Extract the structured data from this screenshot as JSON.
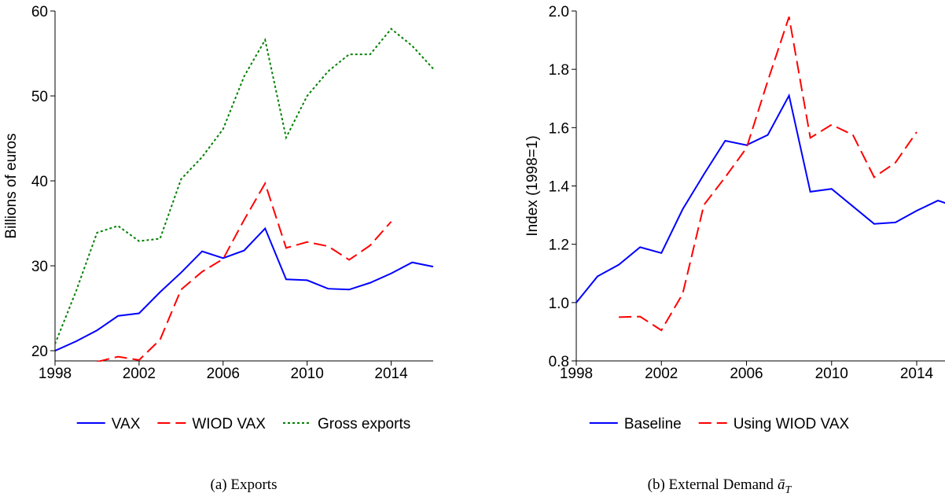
{
  "chart_data": [
    {
      "type": "line",
      "y_label": "Billions of euros",
      "caption": "(a) Exports",
      "x": [
        1998,
        1999,
        2000,
        2001,
        2002,
        2003,
        2004,
        2005,
        2006,
        2007,
        2008,
        2009,
        2010,
        2011,
        2012,
        2013,
        2014,
        2015,
        2016
      ],
      "xlim": [
        1998,
        2016
      ],
      "xticks": [
        1998,
        2002,
        2006,
        2010,
        2014
      ],
      "ylim": [
        18.8,
        60
      ],
      "yticks": [
        20,
        30,
        40,
        50,
        60
      ],
      "series": [
        {
          "name": "VAX",
          "color": "#0000ff",
          "dash": "solid",
          "values": [
            20,
            21.1,
            22.4,
            24.1,
            24.4,
            26.9,
            29.2,
            31.7,
            30.9,
            31.8,
            34.4,
            28.4,
            28.3,
            27.3,
            27.2,
            28.0,
            29.1,
            30.4,
            29.9
          ]
        },
        {
          "name": "WIOD VAX",
          "color": "#ff0000",
          "dash": "dashed",
          "values": [
            null,
            null,
            18.7,
            19.3,
            18.9,
            21.3,
            27.2,
            29.3,
            30.8,
            35.4,
            39.7,
            32.1,
            32.8,
            32.3,
            30.7,
            32.4,
            35.2,
            null,
            null
          ]
        },
        {
          "name": "Gross exports",
          "color": "#008000",
          "dash": "dotted",
          "values": [
            20.8,
            27,
            33.9,
            34.7,
            32.9,
            33.2,
            40.2,
            42.8,
            46.1,
            52.3,
            56.6,
            45.1,
            50.0,
            52.9,
            54.9,
            54.9,
            57.9,
            55.9,
            53.2
          ]
        }
      ]
    },
    {
      "type": "line",
      "y_label": "Index (1998=1)",
      "caption": "(b) External Demand",
      "caption_symbol": "ā",
      "caption_subscript": "T",
      "x": [
        1998,
        1999,
        2000,
        2001,
        2002,
        2003,
        2004,
        2005,
        2006,
        2007,
        2008,
        2009,
        2010,
        2011,
        2012,
        2013,
        2014,
        2015,
        2016
      ],
      "xlim": [
        1998,
        2015.33
      ],
      "xticks": [
        1998,
        2002,
        2006,
        2010,
        2014
      ],
      "ylim": [
        0.8,
        2.0
      ],
      "yticks": [
        0.8,
        {
          "value": 1,
          "label": "1.0"
        },
        1.2,
        1.4,
        1.6,
        1.8,
        {
          "value": 2,
          "label": "2.0"
        }
      ],
      "series": [
        {
          "name": "Baseline",
          "color": "#0000ff",
          "dash": "solid",
          "values": [
            1.0,
            1.09,
            1.13,
            1.19,
            1.17,
            1.32,
            1.44,
            1.555,
            1.54,
            1.575,
            1.71,
            1.38,
            1.39,
            1.33,
            1.27,
            1.275,
            1.315,
            1.35,
            1.325
          ]
        },
        {
          "name": "Using WIOD VAX",
          "color": "#ff0000",
          "dash": "dashed",
          "values": [
            null,
            null,
            0.95,
            0.952,
            0.905,
            1.03,
            1.335,
            1.43,
            1.53,
            1.76,
            1.98,
            1.565,
            1.61,
            1.575,
            1.43,
            1.48,
            1.585,
            null,
            null
          ]
        }
      ]
    }
  ]
}
